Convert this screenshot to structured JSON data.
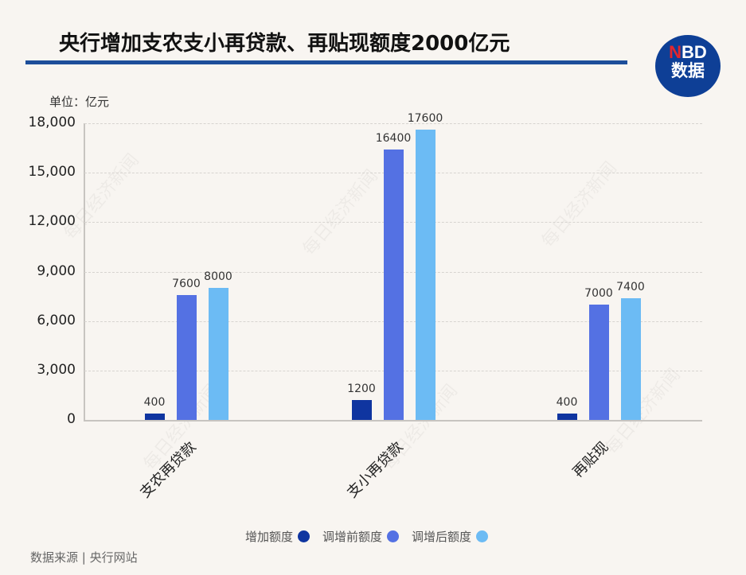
{
  "title": "央行增加支农支小再贷款、再贴现额度2000亿元",
  "logo": {
    "line1_red": "N",
    "line1_rest": "BD",
    "line2": "数据"
  },
  "unit_label": "单位：亿元",
  "source": "数据来源 | 央行网站",
  "colors": {
    "series1": "#0f35a0",
    "series2": "#5471e3",
    "series3": "#6cbbf4",
    "title_rule": "#1d4e9a",
    "logo_bg": "#0e3f96"
  },
  "legend": [
    {
      "label": "增加额度",
      "color": "#0f35a0"
    },
    {
      "label": "调增前额度",
      "color": "#5471e3"
    },
    {
      "label": "调增后额度",
      "color": "#6cbbf4"
    }
  ],
  "yticks": [
    "0",
    "3,000",
    "6,000",
    "9,000",
    "12,000",
    "15,000",
    "18,000"
  ],
  "chart_data": {
    "type": "bar",
    "title": "央行增加支农支小再贷款、再贴现额度2000亿元",
    "xlabel": "",
    "ylabel": "单位：亿元",
    "ylim": [
      0,
      18000
    ],
    "grid": true,
    "legend_position": "bottom",
    "categories": [
      "支农再贷款",
      "支小再贷款",
      "再贴现"
    ],
    "series": [
      {
        "name": "增加额度",
        "values": [
          400,
          1200,
          400
        ]
      },
      {
        "name": "调增前额度",
        "values": [
          7600,
          16400,
          7000
        ]
      },
      {
        "name": "调增后额度",
        "values": [
          8000,
          17600,
          7400
        ]
      }
    ],
    "yticks": [
      0,
      3000,
      6000,
      9000,
      12000,
      15000,
      18000
    ]
  }
}
